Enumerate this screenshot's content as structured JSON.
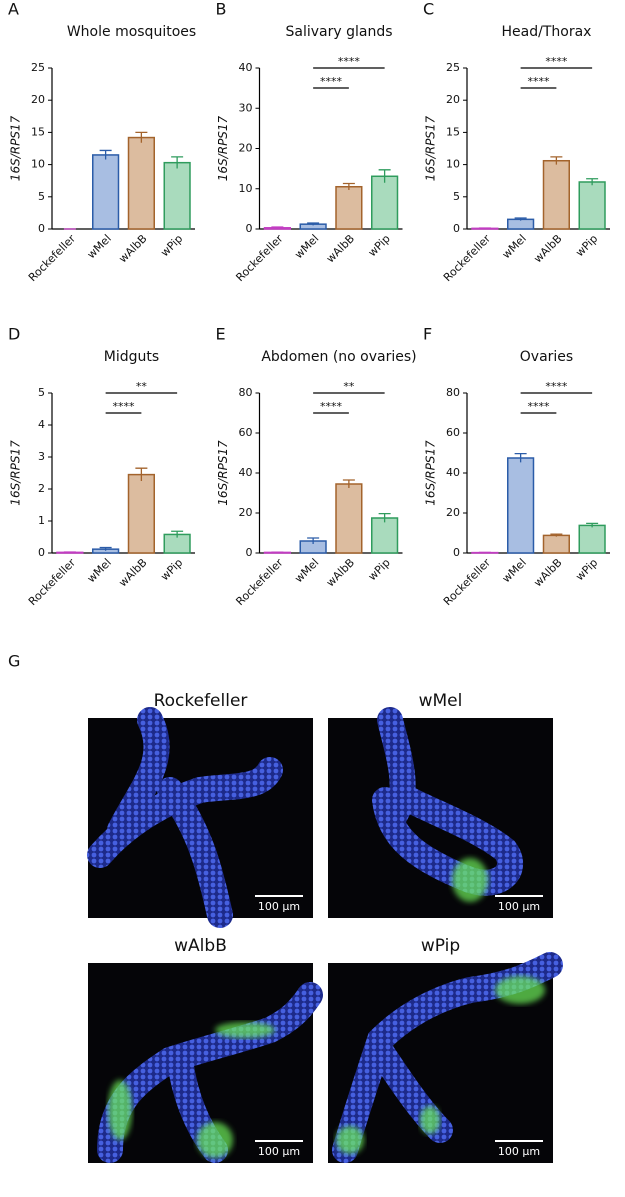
{
  "chart_data": [
    {
      "type": "bar",
      "panel": "A",
      "title": "Whole mosquitoes",
      "y_label": "16S/RPS17",
      "categories": [
        "Rockefeller",
        "wMel",
        "wAlbB",
        "wPip"
      ],
      "values": [
        0,
        11.5,
        14.2,
        10.3
      ],
      "errors": [
        0,
        0.7,
        0.8,
        0.9
      ],
      "colors": [
        "#c23dc2",
        "#2b5ca8",
        "#a3632c",
        "#2f9c5d"
      ],
      "fills": [
        "#e7b3e7",
        "#a8bee2",
        "#dcbc9f",
        "#a9dbbd"
      ],
      "ylim": [
        0,
        25
      ],
      "yticks": [
        0,
        5,
        10,
        15,
        20,
        25
      ],
      "comparisons": []
    },
    {
      "type": "bar",
      "panel": "B",
      "title": "Salivary glands",
      "y_label": "16S/RPS17",
      "categories": [
        "Rockefeller",
        "wMel",
        "wAlbB",
        "wPip"
      ],
      "values": [
        0.3,
        1.2,
        10.5,
        13.1
      ],
      "errors": [
        0.2,
        0.3,
        0.8,
        1.6
      ],
      "colors": [
        "#c23dc2",
        "#2b5ca8",
        "#a3632c",
        "#2f9c5d"
      ],
      "fills": [
        "#e7b3e7",
        "#a8bee2",
        "#dcbc9f",
        "#a9dbbd"
      ],
      "ylim": [
        0,
        40
      ],
      "yticks": [
        0,
        10,
        20,
        30,
        40
      ],
      "comparisons": [
        {
          "label": "****",
          "between": [
            "wMel",
            "wAlbB"
          ]
        },
        {
          "label": "****",
          "between": [
            "wMel",
            "wPip"
          ]
        }
      ]
    },
    {
      "type": "bar",
      "panel": "C",
      "title": "Head/Thorax",
      "y_label": "16S/RPS17",
      "categories": [
        "Rockefeller",
        "wMel",
        "wAlbB",
        "wPip"
      ],
      "values": [
        0.1,
        1.5,
        10.6,
        7.3
      ],
      "errors": [
        0.05,
        0.2,
        0.6,
        0.5
      ],
      "colors": [
        "#c23dc2",
        "#2b5ca8",
        "#a3632c",
        "#2f9c5d"
      ],
      "fills": [
        "#e7b3e7",
        "#a8bee2",
        "#dcbc9f",
        "#a9dbbd"
      ],
      "ylim": [
        0,
        25
      ],
      "yticks": [
        0,
        5,
        10,
        15,
        20,
        25
      ],
      "comparisons": [
        {
          "label": "****",
          "between": [
            "wMel",
            "wAlbB"
          ]
        },
        {
          "label": "****",
          "between": [
            "wMel",
            "wPip"
          ]
        }
      ]
    },
    {
      "type": "bar",
      "panel": "D",
      "title": "Midguts",
      "y_label": "16S/RPS17",
      "categories": [
        "Rockefeller",
        "wMel",
        "wAlbB",
        "wPip"
      ],
      "values": [
        0.02,
        0.12,
        2.45,
        0.58
      ],
      "errors": [
        0.01,
        0.05,
        0.2,
        0.1
      ],
      "colors": [
        "#c23dc2",
        "#2b5ca8",
        "#a3632c",
        "#2f9c5d"
      ],
      "fills": [
        "#e7b3e7",
        "#a8bee2",
        "#dcbc9f",
        "#a9dbbd"
      ],
      "ylim": [
        0,
        5
      ],
      "yticks": [
        0,
        1,
        2,
        3,
        4,
        5
      ],
      "comparisons": [
        {
          "label": "****",
          "between": [
            "wMel",
            "wAlbB"
          ]
        },
        {
          "label": "**",
          "between": [
            "wMel",
            "wPip"
          ]
        }
      ]
    },
    {
      "type": "bar",
      "panel": "E",
      "title": "Abdomen (no ovaries)",
      "y_label": "16S/RPS17",
      "categories": [
        "Rockefeller",
        "wMel",
        "wAlbB",
        "wPip"
      ],
      "values": [
        0.3,
        6.0,
        34.5,
        17.5
      ],
      "errors": [
        0.1,
        1.5,
        2.0,
        2.2
      ],
      "colors": [
        "#c23dc2",
        "#2b5ca8",
        "#a3632c",
        "#2f9c5d"
      ],
      "fills": [
        "#e7b3e7",
        "#a8bee2",
        "#dcbc9f",
        "#a9dbbd"
      ],
      "ylim": [
        0,
        80
      ],
      "yticks": [
        0,
        20,
        40,
        60,
        80
      ],
      "comparisons": [
        {
          "label": "****",
          "between": [
            "wMel",
            "wAlbB"
          ]
        },
        {
          "label": "**",
          "between": [
            "wMel",
            "wPip"
          ]
        }
      ]
    },
    {
      "type": "bar",
      "panel": "F",
      "title": "Ovaries",
      "y_label": "16S/RPS17",
      "categories": [
        "Rockefeller",
        "wMel",
        "wAlbB",
        "wPip"
      ],
      "values": [
        0.2,
        47.5,
        8.8,
        13.8
      ],
      "errors": [
        0.1,
        2.2,
        0.6,
        1.0
      ],
      "colors": [
        "#c23dc2",
        "#2b5ca8",
        "#a3632c",
        "#2f9c5d"
      ],
      "fills": [
        "#e7b3e7",
        "#a8bee2",
        "#dcbc9f",
        "#a9dbbd"
      ],
      "ylim": [
        0,
        80
      ],
      "yticks": [
        0,
        20,
        40,
        60,
        80
      ],
      "comparisons": [
        {
          "label": "****",
          "between": [
            "wMel",
            "wAlbB"
          ]
        },
        {
          "label": "****",
          "between": [
            "wMel",
            "wPip"
          ]
        }
      ]
    }
  ],
  "images": {
    "panel": "G",
    "items": [
      {
        "title": "Rockefeller",
        "scale_bar": "100 µm"
      },
      {
        "title": "wMel",
        "scale_bar": "100 µm"
      },
      {
        "title": "wAlbB",
        "scale_bar": "100 µm"
      },
      {
        "title": "wPip",
        "scale_bar": "100 µm"
      }
    ]
  }
}
